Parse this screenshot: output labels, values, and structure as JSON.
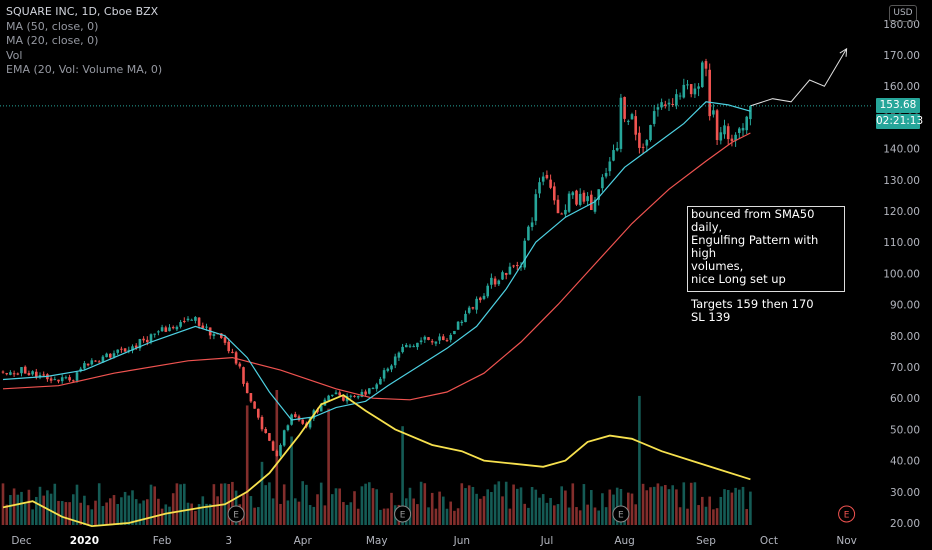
{
  "header": {
    "symbol_line": "SQUARE INC, 1D, Cboe BZX",
    "indicators": [
      "MA (50, close, 0)",
      "MA (20, close, 0)",
      "Vol",
      "EMA (20, Vol: Volume MA, 0)"
    ],
    "currency_button": "USD"
  },
  "price_tags": {
    "last_price": "153.68",
    "countdown": "02:21:13",
    "color": "#26a69a"
  },
  "annotation": {
    "text": "bounced from SMA50 daily,\nEngulfing Pattern with high\nvolumes,\nnice Long set up\n\nTargets 159 then 170\nSL 139"
  },
  "colors": {
    "up": "#26a69a",
    "down": "#ef5350",
    "ma50": "#ef5350",
    "ma20": "#4dd0e1",
    "volume_ema": "#f7e14e",
    "earnings": "#ef5350"
  },
  "chart_data": {
    "type": "candlestick",
    "title": "SQUARE INC, 1D, Cboe BZX",
    "ylim": [
      20,
      187
    ],
    "y_scale": "linear",
    "grid": false,
    "y_ticks": [
      180,
      170,
      160,
      150,
      140,
      130,
      120,
      110,
      100,
      90,
      80,
      70,
      60,
      50,
      40,
      30,
      20
    ],
    "y_tick_labels": [
      "180.00",
      "170.00",
      "160.00",
      "150.00",
      "140.00",
      "130.00",
      "120.00",
      "110.00",
      "100.00",
      "90.00",
      "80.00",
      "70.00",
      "60.00",
      "50.00",
      "40.00",
      "30.00",
      "20.00"
    ],
    "x_tick_labels": [
      "Dec",
      "2020",
      "Feb",
      "3",
      "Apr",
      "May",
      "Jun",
      "Jul",
      "Aug",
      "Sep",
      "Oct",
      "Nov"
    ],
    "x_ticks_at_bar": [
      5,
      22,
      43,
      61,
      81,
      101,
      124,
      147,
      168,
      190,
      207,
      228
    ],
    "key_prices": {
      "last": 153.68,
      "target_1": 159,
      "target_2": 170,
      "stop_loss": 139
    },
    "price_anchors": [
      [
        0,
        68.5
      ],
      [
        5,
        69
      ],
      [
        10,
        67
      ],
      [
        15,
        66
      ],
      [
        19,
        66
      ],
      [
        22,
        71
      ],
      [
        27,
        73
      ],
      [
        32,
        75
      ],
      [
        36,
        77
      ],
      [
        40,
        80
      ],
      [
        44,
        82
      ],
      [
        48,
        84
      ],
      [
        52,
        85
      ],
      [
        55,
        82
      ],
      [
        58,
        80
      ],
      [
        60,
        78
      ],
      [
        62,
        74
      ],
      [
        64,
        69
      ],
      [
        66,
        62
      ],
      [
        68,
        56
      ],
      [
        70,
        51
      ],
      [
        72,
        46
      ],
      [
        74,
        42
      ],
      [
        76,
        49
      ],
      [
        78,
        54
      ],
      [
        80,
        52
      ],
      [
        82,
        51
      ],
      [
        84,
        56
      ],
      [
        86,
        57
      ],
      [
        88,
        61
      ],
      [
        90,
        62
      ],
      [
        92,
        60
      ],
      [
        95,
        61
      ],
      [
        98,
        62
      ],
      [
        100,
        64
      ],
      [
        102,
        67
      ],
      [
        104,
        69
      ],
      [
        106,
        73
      ],
      [
        108,
        76
      ],
      [
        111,
        77
      ],
      [
        114,
        79
      ],
      [
        117,
        79
      ],
      [
        119,
        78
      ],
      [
        121,
        80
      ],
      [
        123,
        84
      ],
      [
        126,
        88
      ],
      [
        129,
        93
      ],
      [
        132,
        97
      ],
      [
        135,
        100
      ],
      [
        138,
        102
      ],
      [
        140,
        104
      ],
      [
        141,
        110
      ],
      [
        143,
        118
      ],
      [
        145,
        130
      ],
      [
        147,
        132
      ],
      [
        149,
        124
      ],
      [
        151,
        118
      ],
      [
        153,
        125
      ],
      [
        155,
        123
      ],
      [
        157,
        125
      ],
      [
        159,
        121
      ],
      [
        161,
        126
      ],
      [
        163,
        132
      ],
      [
        165,
        138
      ],
      [
        166,
        140
      ],
      [
        167,
        155
      ],
      [
        168,
        152
      ],
      [
        170,
        150
      ],
      [
        172,
        140
      ],
      [
        174,
        144
      ],
      [
        176,
        152
      ],
      [
        178,
        154
      ],
      [
        181,
        156
      ],
      [
        184,
        159
      ],
      [
        187,
        157
      ],
      [
        189,
        168
      ],
      [
        190,
        166
      ],
      [
        191,
        152
      ],
      [
        192,
        150
      ],
      [
        193,
        144
      ],
      [
        195,
        145
      ],
      [
        197,
        140
      ],
      [
        198,
        146
      ],
      [
        200,
        145
      ],
      [
        202,
        153.68
      ]
    ],
    "ma_series": [
      {
        "name": "MA (50, close, 0)",
        "color": "#ef5350",
        "points": [
          [
            0,
            63
          ],
          [
            15,
            64
          ],
          [
            30,
            68
          ],
          [
            50,
            72
          ],
          [
            62,
            73
          ],
          [
            75,
            69
          ],
          [
            90,
            63
          ],
          [
            100,
            60
          ],
          [
            110,
            59.5
          ],
          [
            120,
            62
          ],
          [
            130,
            68
          ],
          [
            140,
            78
          ],
          [
            150,
            90
          ],
          [
            160,
            103
          ],
          [
            170,
            116
          ],
          [
            180,
            127
          ],
          [
            190,
            136
          ],
          [
            197,
            142
          ],
          [
            202,
            145
          ]
        ]
      },
      {
        "name": "MA (20, close, 0)",
        "color": "#4dd0e1",
        "points": [
          [
            0,
            66
          ],
          [
            12,
            67
          ],
          [
            22,
            69
          ],
          [
            30,
            73
          ],
          [
            40,
            78
          ],
          [
            52,
            83
          ],
          [
            60,
            80
          ],
          [
            66,
            73
          ],
          [
            72,
            62
          ],
          [
            78,
            53
          ],
          [
            84,
            54
          ],
          [
            90,
            57
          ],
          [
            98,
            59
          ],
          [
            104,
            64
          ],
          [
            112,
            70
          ],
          [
            120,
            76
          ],
          [
            128,
            83
          ],
          [
            136,
            95
          ],
          [
            144,
            110
          ],
          [
            152,
            118
          ],
          [
            160,
            123
          ],
          [
            168,
            134
          ],
          [
            176,
            141
          ],
          [
            184,
            148
          ],
          [
            190,
            155
          ],
          [
            196,
            154
          ],
          [
            202,
            152
          ]
        ]
      }
    ],
    "volume": {
      "axis": "overlay",
      "spike_bars": [
        66,
        70,
        74,
        78,
        88,
        108,
        172
      ],
      "ema": {
        "name": "EMA (20, Vol: Volume MA, 0)",
        "points": [
          [
            0,
            25
          ],
          [
            8,
            27
          ],
          [
            16,
            22
          ],
          [
            24,
            19
          ],
          [
            34,
            20
          ],
          [
            44,
            23
          ],
          [
            54,
            25
          ],
          [
            60,
            26
          ],
          [
            66,
            30
          ],
          [
            72,
            36
          ],
          [
            80,
            48
          ],
          [
            86,
            58
          ],
          [
            92,
            61
          ],
          [
            98,
            56
          ],
          [
            106,
            50
          ],
          [
            116,
            45
          ],
          [
            124,
            43
          ],
          [
            130,
            40
          ],
          [
            138,
            39
          ],
          [
            146,
            38
          ],
          [
            152,
            40
          ],
          [
            158,
            46
          ],
          [
            164,
            48
          ],
          [
            170,
            47
          ],
          [
            178,
            43
          ],
          [
            186,
            40
          ],
          [
            194,
            37
          ],
          [
            202,
            34
          ]
        ]
      }
    },
    "projection": [
      [
        202,
        153.68
      ],
      [
        208,
        156
      ],
      [
        213,
        155
      ],
      [
        218,
        162
      ],
      [
        222,
        160
      ],
      [
        228,
        172
      ]
    ],
    "earnings_markers_at_bar": [
      63,
      108,
      167,
      228
    ]
  }
}
